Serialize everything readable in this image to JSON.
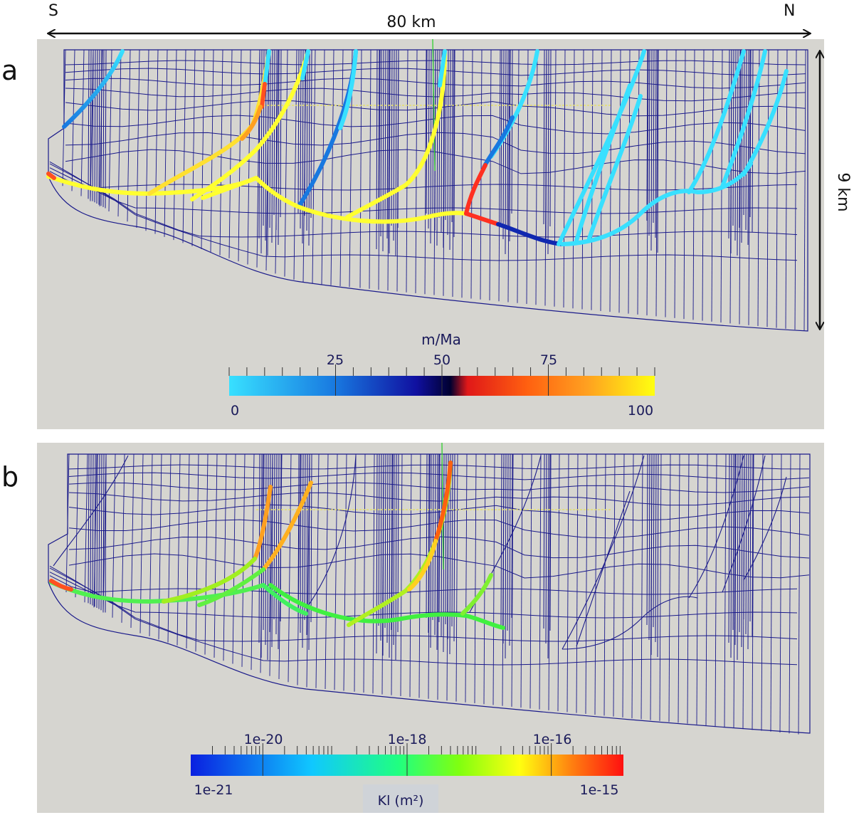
{
  "header": {
    "south": "S",
    "north": "N",
    "width_label": "80 km"
  },
  "panel_a": {
    "letter": "a",
    "depth_label": "9 km",
    "colorbar": {
      "title": "m/Ma",
      "tick_labels_top": [
        "25",
        "50",
        "75"
      ],
      "min_label": "0",
      "max_label": "100",
      "range": [
        0,
        100
      ],
      "stops": [
        "#38e0ff",
        "#1878e0",
        "#1010a0",
        "#000030",
        "#e01818",
        "#ff6010",
        "#ffa020",
        "#ffff10"
      ]
    }
  },
  "panel_b": {
    "letter": "b",
    "colorbar": {
      "title": "Kl (m²)",
      "tick_labels_top": [
        "1e-20",
        "1e-18",
        "1e-16"
      ],
      "min_label": "1e-21",
      "max_label": "1e-15",
      "range_log10": [
        -21,
        -15
      ],
      "stops": [
        "#0a20e0",
        "#10c8ff",
        "#20ff80",
        "#80ff10",
        "#ffff10",
        "#ff8010",
        "#ff1010"
      ]
    }
  },
  "colors": {
    "panel_bg": "#d6d5d0",
    "mesh": "#1a1a8a",
    "horizon": "#e6e06a",
    "marker": "#30d030"
  }
}
